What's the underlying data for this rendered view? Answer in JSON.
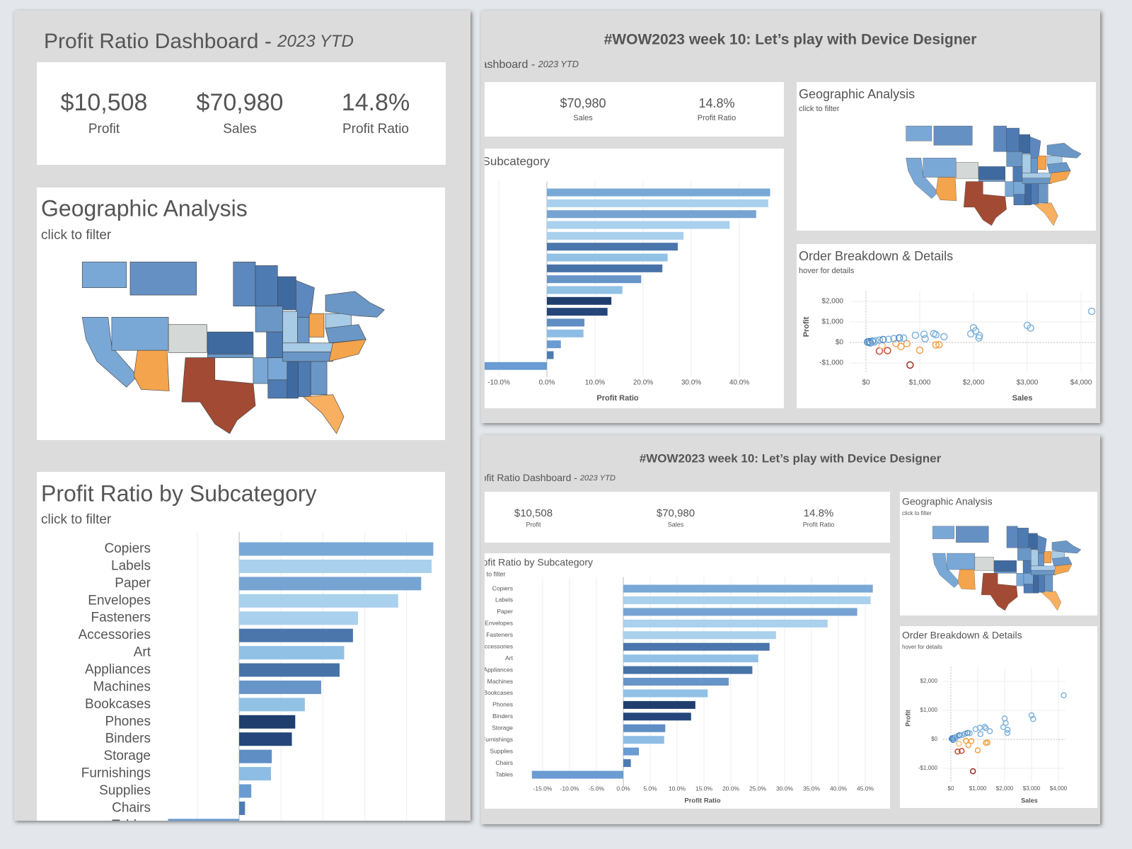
{
  "dashboard": {
    "title": "Profit Ratio Dashboard -",
    "period": "2023 YTD"
  },
  "window_title": "#WOW2023 week 10: Let’s play with Device Designer",
  "kpis": [
    {
      "value": "$10,508",
      "label": "Profit"
    },
    {
      "value": "$70,980",
      "label": "Sales"
    },
    {
      "value": "14.8%",
      "label": "Profit Ratio"
    }
  ],
  "map": {
    "title": "Geographic Analysis",
    "subtitle": "click to filter"
  },
  "chart_data": [
    {
      "type": "bar",
      "title": "Profit Ratio by Subcategory",
      "subtitle": "click to filter",
      "x_label": "Profit Ratio",
      "categories": [
        "Copiers",
        "Labels",
        "Paper",
        "Envelopes",
        "Fasteners",
        "Accessories",
        "Art",
        "Appliances",
        "Machines",
        "Bookcases",
        "Phones",
        "Binders",
        "Storage",
        "Furnishings",
        "Supplies",
        "Chairs",
        "Tables"
      ],
      "values": [
        46.4,
        46,
        43.5,
        38,
        28.4,
        27.2,
        25.1,
        24,
        19.6,
        15.7,
        13.4,
        12.6,
        7.8,
        7.6,
        2.9,
        1.4,
        -17
      ],
      "colors": [
        "#78a8d6",
        "#a9d0ec",
        "#76a4d2",
        "#a9d0ec",
        "#a9d0ec",
        "#4a76ab",
        "#92c1e6",
        "#4672a7",
        "#6795c8",
        "#92c1e6",
        "#1f3e6d",
        "#24467a",
        "#5f8ec4",
        "#8dbde5",
        "#6a9bd2",
        "#4e7cb2",
        "#6a9bd2"
      ],
      "xlim": [
        -18,
        48
      ],
      "xticks": [
        {
          "value": -15,
          "label": "-15.0%"
        },
        {
          "value": -10,
          "label": "-10.0%"
        },
        {
          "value": -5,
          "label": "-5.0%"
        },
        {
          "value": 0,
          "label": "0.0%"
        },
        {
          "value": 5,
          "label": "5.0%"
        },
        {
          "value": 10,
          "label": "10.0%"
        },
        {
          "value": 15,
          "label": "15.0%"
        },
        {
          "value": 20,
          "label": "20.0%"
        },
        {
          "value": 25,
          "label": "25.0%"
        },
        {
          "value": 30,
          "label": "30.0%"
        },
        {
          "value": 35,
          "label": "35.0%"
        },
        {
          "value": 40,
          "label": "40.0%"
        },
        {
          "value": 45,
          "label": "45.0%"
        }
      ]
    },
    {
      "type": "scatter",
      "title": "Order Breakdown & Details",
      "subtitle": "hover for details",
      "x_label": "Sales",
      "y_label": "Profit",
      "x": [
        4197,
        3000,
        3060,
        2000,
        2040,
        2110,
        1950,
        2100,
        1450,
        1260,
        1300,
        1080,
        920,
        1100,
        820,
        250,
        400,
        1300,
        1360,
        1000,
        650,
        560,
        760,
        300,
        30,
        60,
        120,
        180,
        250,
        320,
        420,
        520,
        620,
        700,
        80,
        150
      ],
      "values": [
        1517,
        830,
        700,
        720,
        560,
        330,
        420,
        220,
        280,
        430,
        380,
        400,
        350,
        180,
        -1100,
        -420,
        -400,
        -120,
        -110,
        -380,
        -200,
        -50,
        -60,
        -150,
        20,
        40,
        60,
        80,
        110,
        140,
        150,
        190,
        220,
        210,
        -20,
        10
      ],
      "colors": [
        "#7fb3dc",
        "#7fb3dc",
        "#7fb3dc",
        "#7fb3dc",
        "#7fb3dc",
        "#7fb3dc",
        "#7fb3dc",
        "#7fb3dc",
        "#7fb3dc",
        "#7fb3dc",
        "#7fb3dc",
        "#7fb3dc",
        "#7fb3dc",
        "#7fb3dc",
        "#9e2a1c",
        "#c4472e",
        "#c4472e",
        "#f2a24a",
        "#f2a24a",
        "#f2a24a",
        "#f2a24a",
        "#f2a24a",
        "#f2a24a",
        "#f7c07a",
        "#4f86c2",
        "#4f86c2",
        "#4f86c2",
        "#7fb3dc",
        "#7fb3dc",
        "#4f86c2",
        "#7fb3dc",
        "#7fb3dc",
        "#4f86c2",
        "#7fb3dc",
        "#4f86c2",
        "#7fb3dc"
      ],
      "xlim": [
        -300,
        4250
      ],
      "ylim": [
        -1500,
        2500
      ],
      "xticks": [
        {
          "value": 0,
          "label": "$0"
        },
        {
          "value": 1000,
          "label": "$1,000"
        },
        {
          "value": 2000,
          "label": "$2,000"
        },
        {
          "value": 3000,
          "label": "$3,000"
        },
        {
          "value": 4000,
          "label": "$4,000"
        }
      ],
      "yticks": [
        {
          "value": -1000,
          "label": "-$1,000"
        },
        {
          "value": 0,
          "label": "$0"
        },
        {
          "value": 1000,
          "label": "$1,000"
        },
        {
          "value": 2000,
          "label": "$2,000"
        }
      ]
    }
  ]
}
